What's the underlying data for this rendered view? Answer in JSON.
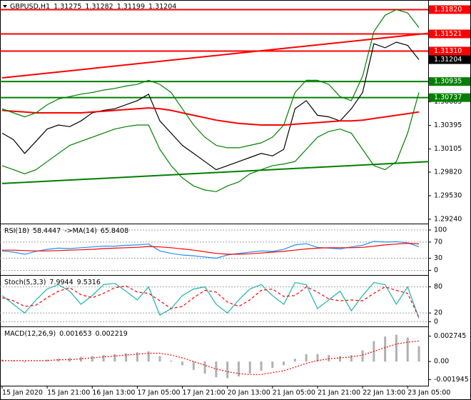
{
  "chart_data": [
    {
      "type": "line",
      "symbol": "GBPUSD,H1",
      "ohlc": [
        1.31275,
        1.31282,
        1.31199,
        1.31204
      ],
      "categories": [
        "15 Jan 2020",
        null,
        null,
        null,
        "15 Jan 21:00",
        null,
        null,
        null,
        "16 Jan 13:00",
        null,
        null,
        null,
        "17 Jan 05:00",
        null,
        null,
        null,
        "17 Jan 21:00",
        null,
        null,
        null,
        "20 Jan 13:00",
        null,
        null,
        null,
        "21 Jan 05:00",
        null,
        null,
        null,
        "21 Jan 21:00",
        null,
        null,
        null,
        "22 Jan 13:00",
        null,
        null,
        null,
        "23 Jan 05:00",
        null
      ],
      "ylim": [
        1.29196,
        1.31868
      ],
      "yticks": [
        1.30685,
        1.30395,
        1.30105,
        {
          "value": 1.2982,
          "label": "1.29820"
        },
        {
          "value": 1.2953,
          "label": "1.29530"
        },
        {
          "value": 1.2924,
          "label": "1.29240"
        }
      ],
      "levels": [
        {
          "value": 1.3182,
          "label": "1.31820",
          "color": "#ff0000"
        },
        {
          "value": 1.31521,
          "color": "#ff0000"
        },
        {
          "value": 1.3131,
          "label": "1.31310",
          "color": "#ff0000"
        },
        {
          "value": 1.30935,
          "color": "#008000"
        },
        {
          "value": 1.30737,
          "color": "#008000"
        }
      ],
      "trendlines": [
        {
          "color": "#ff0000",
          "values": [
            1.3098,
            1.3153
          ]
        },
        {
          "color": "#008000",
          "values": [
            1.2968,
            1.2995
          ]
        }
      ],
      "series": [
        {
          "color": "#000000",
          "style": "line",
          "values": [
            1.303,
            1.3022,
            1.3005,
            1.302,
            1.3035,
            1.304,
            1.3038,
            1.3045,
            1.3055,
            1.3058,
            1.306,
            1.3065,
            1.307,
            1.3078,
            1.3045,
            1.303,
            1.3015,
            1.3005,
            1.2995,
            1.2985,
            1.299,
            1.2995,
            1.3,
            1.3005,
            1.3002,
            1.301,
            1.306,
            1.307,
            1.3052,
            1.305,
            1.3045,
            1.306,
            1.308,
            1.314,
            1.3135,
            1.3142,
            1.3138,
            1.31204
          ]
        },
        {
          "color": "#ff0000",
          "style": "line",
          "values": [
            1.3058,
            1.3057,
            1.3056,
            1.3055,
            1.3055,
            1.3055,
            1.3055,
            1.3055,
            1.3056,
            1.3057,
            1.3058,
            1.3059,
            1.306,
            1.3061,
            1.306,
            1.3058,
            1.3055,
            1.3052,
            1.3049,
            1.3046,
            1.3044,
            1.3042,
            1.3041,
            1.304,
            1.304,
            1.304,
            1.3041,
            1.3042,
            1.3043,
            1.3044,
            1.3045,
            1.3045,
            1.3046,
            1.3048,
            1.305,
            1.3052,
            1.3054,
            1.3056
          ]
        },
        {
          "color": "#008000",
          "style": "line",
          "values": [
            1.306,
            1.3055,
            1.305,
            1.3055,
            1.3065,
            1.3072,
            1.3075,
            1.3078,
            1.308,
            1.3083,
            1.3085,
            1.3088,
            1.309,
            1.3095,
            1.309,
            1.308,
            1.306,
            1.304,
            1.3025,
            1.3015,
            1.3012,
            1.3012,
            1.3015,
            1.3018,
            1.3025,
            1.304,
            1.308,
            1.3095,
            1.3095,
            1.309,
            1.3075,
            1.307,
            1.31,
            1.3155,
            1.3175,
            1.3182,
            1.3178,
            1.316
          ]
        },
        {
          "color": "#008000",
          "style": "line",
          "values": [
            1.299,
            1.2985,
            1.298,
            1.2985,
            1.2995,
            1.3005,
            1.3015,
            1.302,
            1.3025,
            1.303,
            1.3035,
            1.3038,
            1.304,
            1.304,
            1.301,
            1.299,
            1.2975,
            1.2965,
            1.296,
            1.2958,
            1.2965,
            1.297,
            1.298,
            1.2985,
            1.299,
            1.2992,
            1.2995,
            1.301,
            1.3025,
            1.3032,
            1.3035,
            1.303,
            1.301,
            1.299,
            1.2985,
            1.2995,
            1.303,
            1.308
          ]
        }
      ]
    },
    {
      "type": "line",
      "ylim": [
        -8,
        107
      ],
      "yticks": [
        100,
        70,
        30,
        0
      ],
      "grid": true,
      "series": [
        {
          "label": "RSI(18)",
          "color": "#1e90ff",
          "style": "line",
          "values": [
            48,
            45,
            40,
            47,
            52,
            55,
            54,
            56,
            58,
            60,
            60,
            62,
            63,
            65,
            48,
            42,
            38,
            36,
            33,
            30,
            38,
            42,
            45,
            48,
            47,
            52,
            63,
            66,
            57,
            55,
            53,
            58,
            62,
            72,
            70,
            71,
            68,
            58.4447
          ]
        },
        {
          "label": "->MA(14)",
          "color": "#ff0000",
          "style": "line",
          "values": [
            50,
            50,
            49,
            48,
            48,
            49,
            50,
            51,
            52,
            54,
            55,
            56,
            57,
            59,
            58,
            56,
            53,
            50,
            46,
            42,
            40,
            40,
            41,
            43,
            45,
            47,
            50,
            53,
            55,
            56,
            56,
            56,
            57,
            60,
            63,
            65,
            67,
            65.8408
          ]
        }
      ]
    },
    {
      "type": "line",
      "ylim": [
        -6,
        99
      ],
      "yticks": [
        80,
        20,
        0
      ],
      "grid": true,
      "series": [
        {
          "label": "Stoch(5,3,3)",
          "color": "#20b2aa",
          "style": "line",
          "values": [
            60,
            40,
            20,
            50,
            75,
            85,
            70,
            40,
            60,
            85,
            88,
            70,
            50,
            80,
            15,
            30,
            60,
            75,
            80,
            40,
            20,
            50,
            75,
            85,
            60,
            40,
            90,
            85,
            30,
            50,
            70,
            25,
            60,
            90,
            85,
            40,
            80,
            7.9944
          ]
        },
        {
          "color": "#ff0000",
          "style": "dashed",
          "values": [
            55,
            48,
            35,
            38,
            55,
            70,
            78,
            62,
            55,
            65,
            78,
            82,
            68,
            65,
            48,
            30,
            35,
            55,
            72,
            68,
            45,
            35,
            50,
            72,
            75,
            58,
            60,
            80,
            68,
            52,
            48,
            50,
            48,
            65,
            80,
            72,
            65,
            9.5316
          ]
        }
      ]
    },
    {
      "type": "line",
      "ylim": [
        -0.00246,
        0.00341
      ],
      "yticks": [
        0.002745,
        {
          "value": 0,
          "label": "0.00"
        },
        -0.001945
      ],
      "series": [
        {
          "label": "MACD(12,26,9)",
          "color": "#b0b0b0",
          "style": "histogram",
          "values": [
            0.0002,
            0.0001,
            -0.0001,
            0,
            0.0002,
            0.0003,
            0.0004,
            0.0005,
            0.0006,
            0.0007,
            0.0008,
            0.0009,
            0.001,
            0.0011,
            0.0006,
            0.0001,
            -0.0004,
            -0.0009,
            -0.0013,
            -0.0017,
            -0.0018,
            -0.0016,
            -0.0013,
            -0.001,
            -0.0007,
            -0.0004,
            0.0003,
            0.0008,
            0.0008,
            0.0007,
            0.0006,
            0.0007,
            0.0012,
            0.0022,
            0.0027,
            0.0029,
            0.0026,
            0.001653
          ]
        },
        {
          "color": "#ff0000",
          "style": "dotted",
          "values": [
            0.0001,
            0.0001,
            0.0001,
            0.0001,
            0.0001,
            0.0002,
            0.0002,
            0.0003,
            0.0004,
            0.0005,
            0.0006,
            0.0007,
            0.0008,
            0.0009,
            0.0009,
            0.0007,
            0.0004,
            0,
            -0.0004,
            -0.0008,
            -0.0011,
            -0.0013,
            -0.0014,
            -0.0014,
            -0.0012,
            -0.001,
            -0.0006,
            -0.0002,
            0.0001,
            0.0003,
            0.0004,
            0.0005,
            0.0007,
            0.0011,
            0.0015,
            0.0019,
            0.0021,
            0.002219
          ]
        }
      ]
    }
  ]
}
